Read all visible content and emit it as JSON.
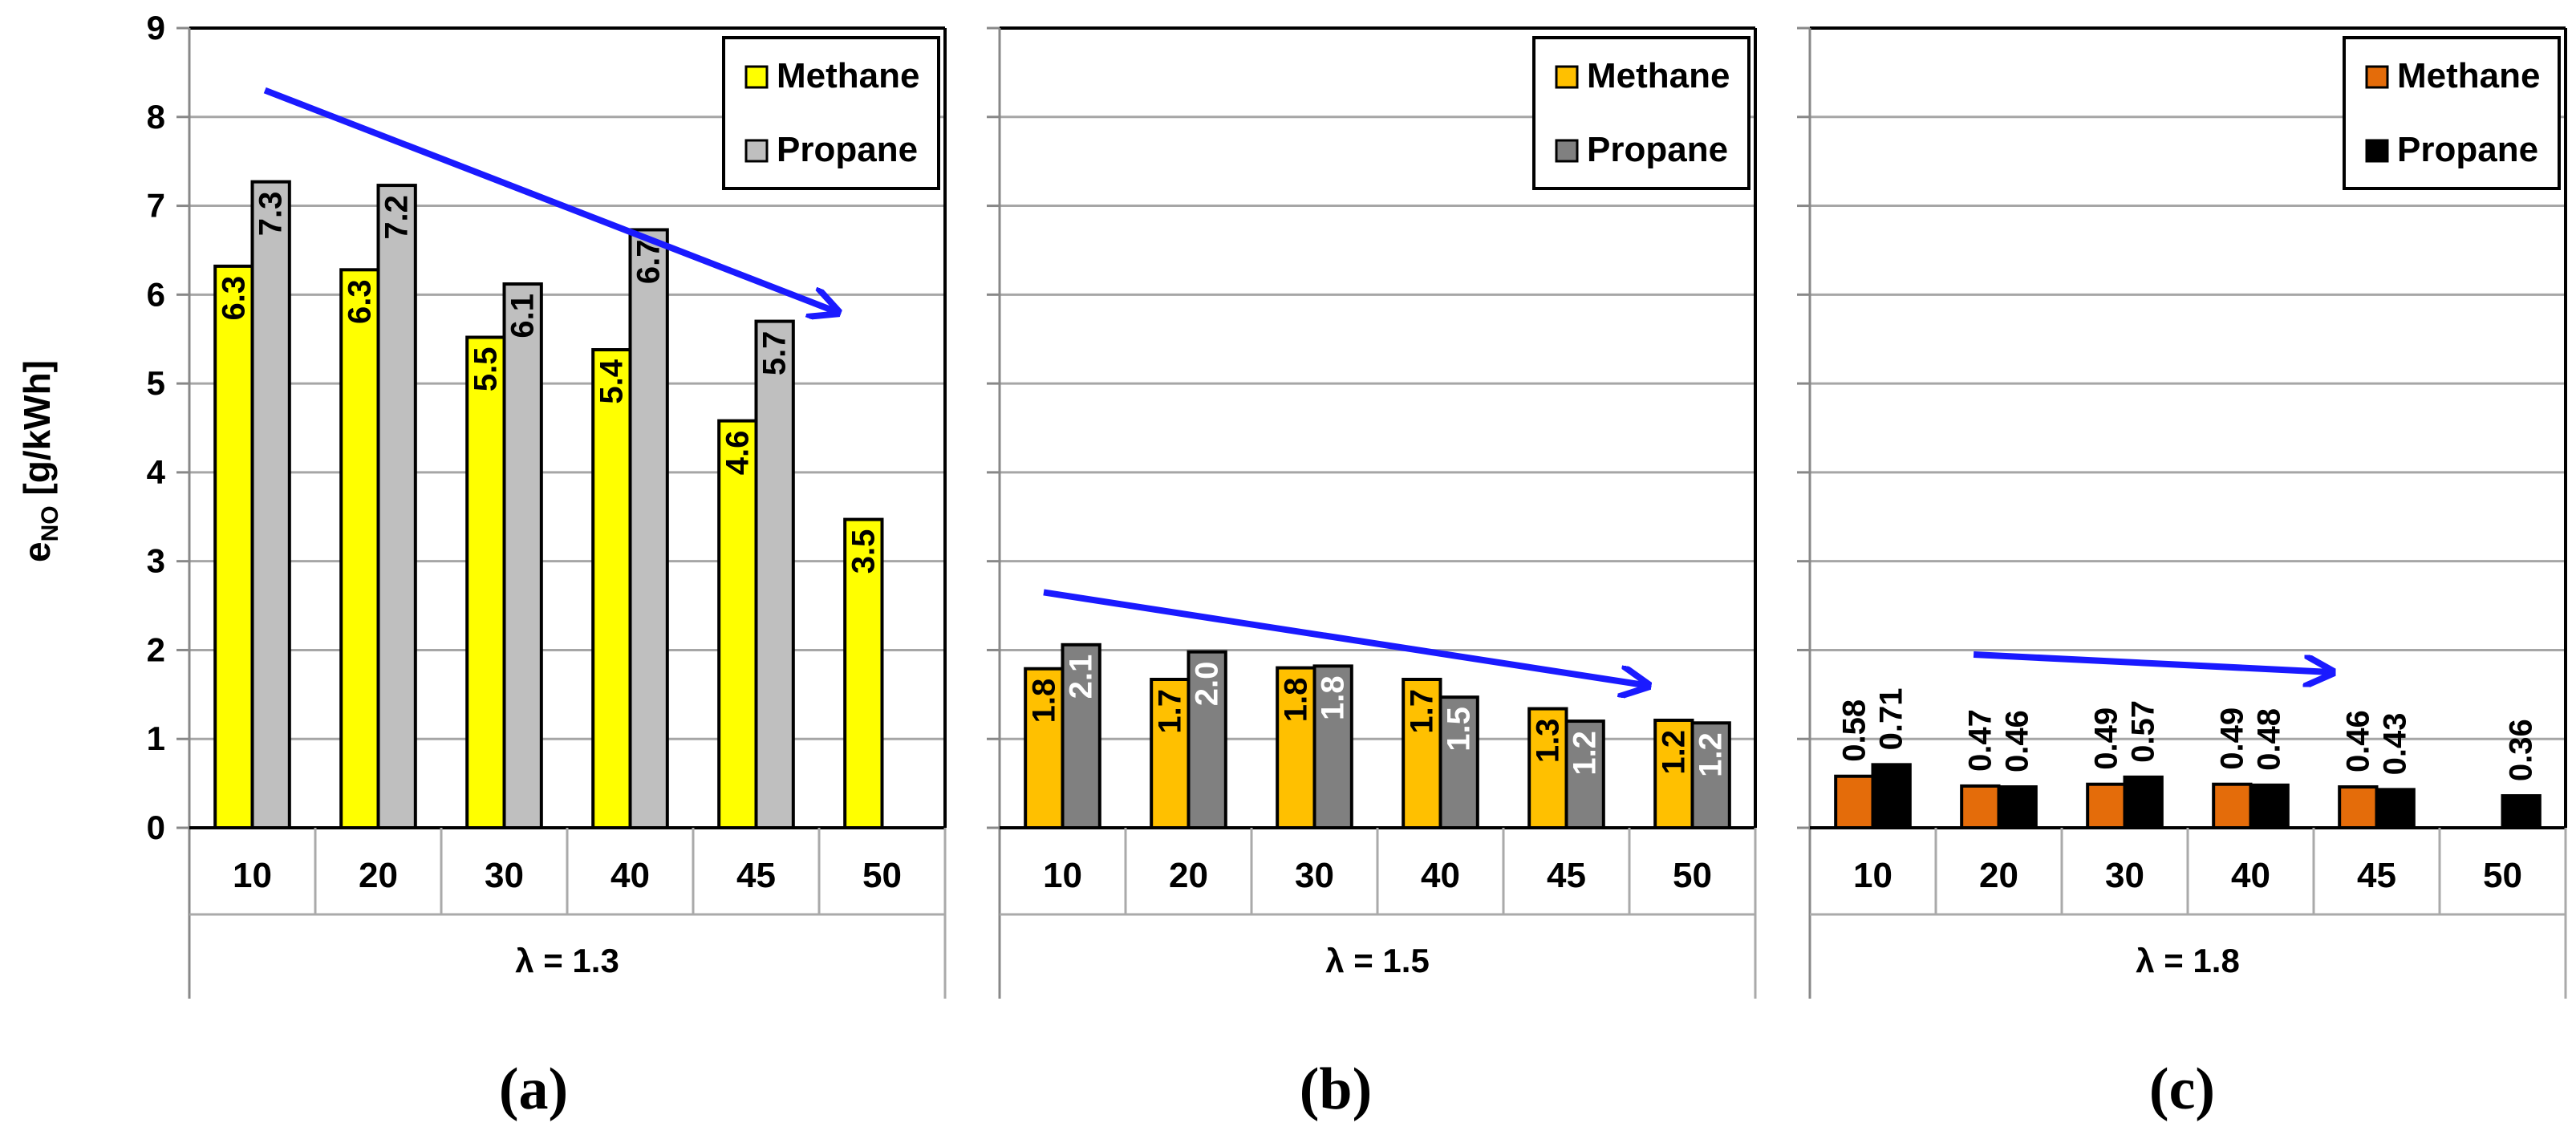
{
  "y_axis_label": {
    "main": "e",
    "sub": "NO",
    "unit": " [g/kWh]"
  },
  "panel_labels": [
    "(a)",
    "(b)",
    "(c)"
  ],
  "colors": {
    "gridline": "#a6a6a6",
    "trend_arrow": "#1a1aff"
  },
  "chart_data": [
    {
      "type": "bar",
      "group_label": "λ = 1.3",
      "categories": [
        "10",
        "20",
        "30",
        "40",
        "45",
        "50"
      ],
      "ylim": [
        0,
        9
      ],
      "yticks": [
        "0",
        "1",
        "2",
        "3",
        "4",
        "5",
        "6",
        "7",
        "8",
        "9"
      ],
      "grid": true,
      "legend": "top-right",
      "label_rotation": "vertical",
      "series": [
        {
          "name": "Methane",
          "color": "#ffff00",
          "label_color": "#000000",
          "values": [
            6.32,
            6.28,
            5.52,
            5.38,
            4.58,
            3.47
          ],
          "labels": [
            "6.3",
            "6.3",
            "5.5",
            "5.4",
            "4.6",
            "3.5"
          ]
        },
        {
          "name": "Propane",
          "color": "#bfbfbf",
          "label_color": "#000000",
          "values": [
            7.27,
            7.23,
            6.12,
            6.73,
            5.7,
            null
          ],
          "labels": [
            "7.3",
            "7.2",
            "6.1",
            "6.7",
            "5.7",
            null
          ]
        }
      ],
      "trend_arrow": {
        "from": [
          0.6,
          8.3
        ],
        "to": [
          5.15,
          5.8
        ]
      }
    },
    {
      "type": "bar",
      "group_label": "λ = 1.5",
      "categories": [
        "10",
        "20",
        "30",
        "40",
        "45",
        "50"
      ],
      "ylim": [
        0,
        9
      ],
      "grid": true,
      "legend": "top-right",
      "label_rotation": "vertical",
      "series": [
        {
          "name": "Methane",
          "color": "#ffc000",
          "label_color": "#000000",
          "values": [
            1.79,
            1.67,
            1.8,
            1.67,
            1.34,
            1.21
          ],
          "labels": [
            "1.8",
            "1.7",
            "1.8",
            "1.7",
            "1.3",
            "1.2"
          ]
        },
        {
          "name": "Propane",
          "color": "#808080",
          "label_color": "#ffffff",
          "values": [
            2.06,
            1.98,
            1.82,
            1.47,
            1.2,
            1.18
          ],
          "labels": [
            "2.1",
            "2.0",
            "1.8",
            "1.5",
            "1.2",
            "1.2"
          ]
        }
      ],
      "trend_arrow": {
        "from": [
          0.35,
          2.65
        ],
        "to": [
          5.15,
          1.6
        ]
      }
    },
    {
      "type": "bar",
      "group_label": "λ = 1.8",
      "categories": [
        "10",
        "20",
        "30",
        "40",
        "45",
        "50"
      ],
      "ylim": [
        0,
        9
      ],
      "grid": true,
      "legend": "top-right",
      "label_rotation": "vertical",
      "label_position": "above",
      "series": [
        {
          "name": "Methane",
          "color": "#e46c0a",
          "label_color": "#000000",
          "values": [
            0.58,
            0.47,
            0.49,
            0.49,
            0.46,
            null
          ],
          "labels": [
            "0.58",
            "0.47",
            "0.49",
            "0.49",
            "0.46",
            null
          ]
        },
        {
          "name": "Propane",
          "color": "#000000",
          "label_color": "#000000",
          "values": [
            0.71,
            0.46,
            0.57,
            0.48,
            0.43,
            0.36
          ],
          "labels": [
            "0.71",
            "0.46",
            "0.57",
            "0.48",
            "0.43",
            "0.36"
          ]
        }
      ],
      "trend_arrow": {
        "from": [
          1.3,
          1.95
        ],
        "to": [
          4.15,
          1.75
        ]
      }
    }
  ]
}
